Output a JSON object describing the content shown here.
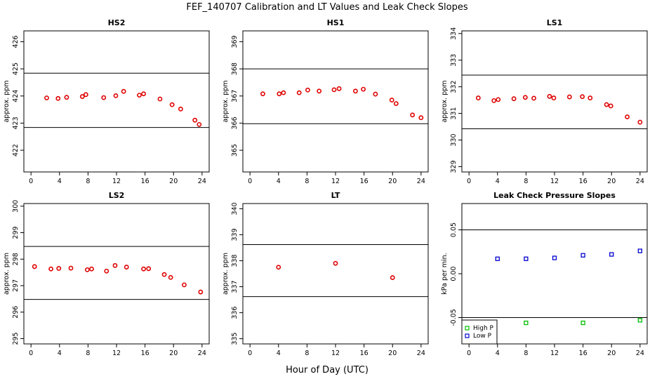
{
  "figure": {
    "title": "FEF_140707  Calibration and LT Values and Leak Check Slopes",
    "xlabel": "Hour of Day (UTC)"
  },
  "chart_data": [
    {
      "type": "scatter",
      "title": "HS2",
      "ylabel": "approx. ppm",
      "xlim": [
        -1,
        25
      ],
      "ylim": [
        421.2,
        426.4
      ],
      "xticks": [
        0,
        4,
        8,
        12,
        16,
        20,
        24
      ],
      "yticks": [
        422,
        423,
        424,
        425,
        426
      ],
      "hlines": [
        424.84,
        422.84
      ],
      "series": [
        {
          "color": "#e00000",
          "marker": "circle",
          "points": [
            [
              2.2,
              423.93
            ],
            [
              3.8,
              423.91
            ],
            [
              5.0,
              423.95
            ],
            [
              7.2,
              423.98
            ],
            [
              7.7,
              424.05
            ],
            [
              10.2,
              423.94
            ],
            [
              11.9,
              424.01
            ],
            [
              13.0,
              424.17
            ],
            [
              15.2,
              424.03
            ],
            [
              15.8,
              424.08
            ],
            [
              18.1,
              423.89
            ],
            [
              19.8,
              423.68
            ],
            [
              21.0,
              423.52
            ],
            [
              23.0,
              423.11
            ],
            [
              23.6,
              422.95
            ]
          ]
        }
      ]
    },
    {
      "type": "scatter",
      "title": "HS1",
      "ylabel": "approx. ppm",
      "xlim": [
        -1,
        25
      ],
      "ylim": [
        364.2,
        369.4
      ],
      "xticks": [
        0,
        4,
        8,
        12,
        16,
        20,
        24
      ],
      "yticks": [
        365,
        366,
        367,
        368,
        369
      ],
      "hlines": [
        368.0,
        365.98
      ],
      "series": [
        {
          "color": "#e00000",
          "marker": "circle",
          "points": [
            [
              1.8,
              367.08
            ],
            [
              4.1,
              367.08
            ],
            [
              4.7,
              367.12
            ],
            [
              6.9,
              367.12
            ],
            [
              8.1,
              367.22
            ],
            [
              9.7,
              367.18
            ],
            [
              11.8,
              367.23
            ],
            [
              12.5,
              367.27
            ],
            [
              14.8,
              367.18
            ],
            [
              15.9,
              367.25
            ],
            [
              17.6,
              367.07
            ],
            [
              19.9,
              366.85
            ],
            [
              20.5,
              366.72
            ],
            [
              22.8,
              366.3
            ],
            [
              24.0,
              366.2
            ]
          ]
        }
      ]
    },
    {
      "type": "scatter",
      "title": "LS1",
      "ylabel": "approx. ppm",
      "xlim": [
        -1,
        25
      ],
      "ylim": [
        328.8,
        334.1
      ],
      "xticks": [
        0,
        4,
        8,
        12,
        16,
        20,
        24
      ],
      "yticks": [
        329,
        330,
        331,
        332,
        333,
        334
      ],
      "hlines": [
        332.44,
        330.42
      ],
      "series": [
        {
          "color": "#e00000",
          "marker": "circle",
          "points": [
            [
              1.3,
              331.58
            ],
            [
              3.5,
              331.48
            ],
            [
              4.1,
              331.52
            ],
            [
              6.3,
              331.55
            ],
            [
              7.9,
              331.6
            ],
            [
              9.1,
              331.57
            ],
            [
              11.3,
              331.64
            ],
            [
              11.9,
              331.58
            ],
            [
              14.1,
              331.62
            ],
            [
              15.9,
              331.63
            ],
            [
              17.0,
              331.58
            ],
            [
              19.3,
              331.33
            ],
            [
              19.9,
              331.28
            ],
            [
              22.2,
              330.87
            ],
            [
              24.0,
              330.67
            ]
          ]
        }
      ]
    },
    {
      "type": "scatter",
      "title": "LS2",
      "ylabel": "approx. ppm",
      "xlim": [
        -1,
        25
      ],
      "ylim": [
        294.8,
        300.1
      ],
      "xticks": [
        0,
        4,
        8,
        12,
        16,
        20,
        24
      ],
      "yticks": [
        295,
        296,
        297,
        298,
        299,
        300
      ],
      "hlines": [
        298.48,
        296.48
      ],
      "series": [
        {
          "color": "#e00000",
          "marker": "circle",
          "points": [
            [
              0.5,
              297.72
            ],
            [
              2.8,
              297.63
            ],
            [
              3.9,
              297.65
            ],
            [
              5.6,
              297.66
            ],
            [
              7.9,
              297.6
            ],
            [
              8.5,
              297.63
            ],
            [
              10.6,
              297.55
            ],
            [
              11.8,
              297.76
            ],
            [
              13.4,
              297.7
            ],
            [
              15.8,
              297.63
            ],
            [
              16.5,
              297.64
            ],
            [
              18.7,
              297.42
            ],
            [
              19.6,
              297.31
            ],
            [
              21.5,
              297.03
            ],
            [
              23.8,
              296.76
            ]
          ]
        }
      ]
    },
    {
      "type": "scatter",
      "title": "LT",
      "ylabel": "approx. ppm",
      "xlim": [
        -1,
        25
      ],
      "ylim": [
        334.8,
        340.2
      ],
      "xticks": [
        0,
        4,
        8,
        12,
        16,
        20,
        24
      ],
      "yticks": [
        335,
        336,
        337,
        338,
        339,
        340
      ],
      "hlines": [
        338.62,
        336.62
      ],
      "series": [
        {
          "color": "#e00000",
          "marker": "circle",
          "points": [
            [
              4.0,
              337.75
            ],
            [
              12.0,
              337.9
            ],
            [
              20.0,
              337.35
            ]
          ]
        }
      ]
    },
    {
      "type": "scatter",
      "title": "Leak Check Pressure Slopes",
      "ylabel": "kPa per min.",
      "xlim": [
        -1,
        25
      ],
      "ylim": [
        -0.08,
        0.08
      ],
      "xticks": [
        0,
        4,
        8,
        12,
        16,
        20,
        24
      ],
      "yticks": [
        -0.05,
        0.0,
        0.05
      ],
      "ytick_labels": [
        "-0.05",
        "0.00",
        "0.05"
      ],
      "hlines": [
        0.05,
        -0.05
      ],
      "legend": "bottom-left",
      "series": [
        {
          "name": "High P",
          "color": "#00c000",
          "marker": "square",
          "points": [
            [
              8,
              -0.056
            ],
            [
              16,
              -0.056
            ],
            [
              24,
              -0.053
            ]
          ]
        },
        {
          "name": "Low P",
          "color": "#0000d0",
          "marker": "square",
          "points": [
            [
              4,
              0.017
            ],
            [
              8,
              0.017
            ],
            [
              12,
              0.018
            ],
            [
              16,
              0.021
            ],
            [
              20,
              0.022
            ],
            [
              24,
              0.026
            ]
          ]
        }
      ]
    }
  ]
}
